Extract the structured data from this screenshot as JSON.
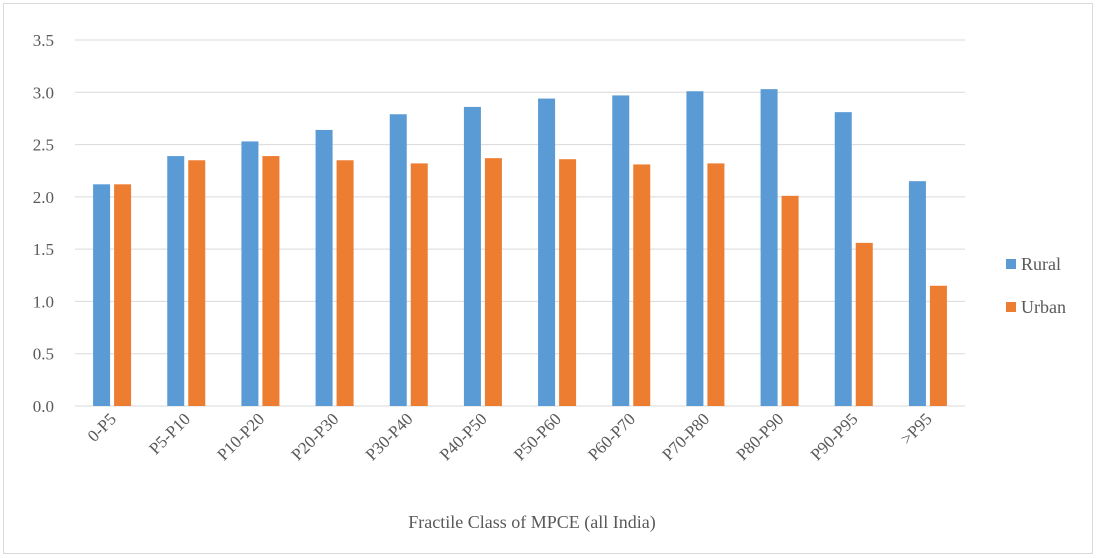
{
  "chart_data": {
    "type": "bar",
    "categories": [
      "0-P5",
      "P5-P10",
      "P10-P20",
      "P20-P30",
      "P30-P40",
      "P40-P50",
      "P50-P60",
      "P60-P70",
      "P70-P80",
      "P80-P90",
      "P90-P95",
      ">P95"
    ],
    "series": [
      {
        "name": "Rural",
        "color": "#5b9bd5",
        "values": [
          2.12,
          2.39,
          2.53,
          2.64,
          2.79,
          2.86,
          2.94,
          2.97,
          3.01,
          3.03,
          2.81,
          2.15
        ]
      },
      {
        "name": "Urban",
        "color": "#ed7d31",
        "values": [
          2.12,
          2.35,
          2.39,
          2.35,
          2.32,
          2.37,
          2.36,
          2.31,
          2.32,
          2.01,
          1.56,
          1.15
        ]
      }
    ],
    "xlabel": "Fractile Class of MPCE (all India)",
    "ylabel": "",
    "ylim": [
      0,
      3.5
    ],
    "yticks": [
      "0.0",
      "0.5",
      "1.0",
      "1.5",
      "2.0",
      "2.5",
      "3.0",
      "3.5"
    ],
    "grid": true,
    "legend_position": "right"
  }
}
